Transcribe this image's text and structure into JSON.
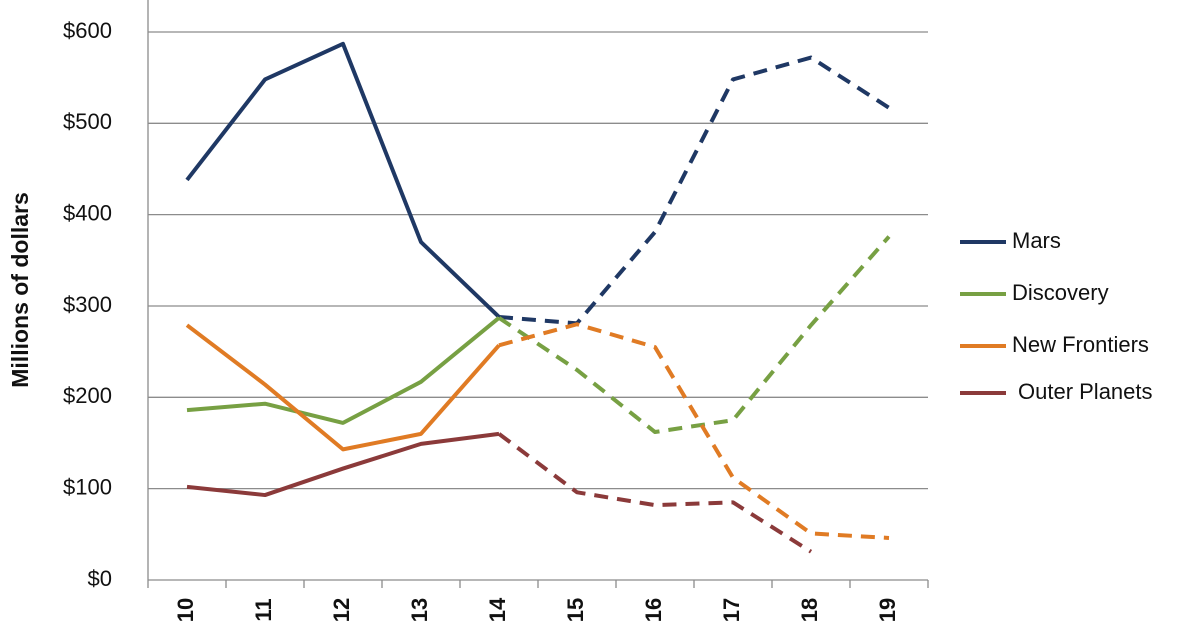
{
  "chart_data": {
    "type": "line",
    "y_label": "Millions of dollars",
    "categories": [
      "10",
      "11",
      "12",
      "13",
      "14",
      "15",
      "16",
      "17",
      "18",
      "19"
    ],
    "dashed_from": "14",
    "series": [
      {
        "name": "Mars",
        "color": "#1f3864",
        "values": [
          438,
          548,
          587,
          370,
          288,
          281,
          381,
          548,
          572,
          517
        ]
      },
      {
        "name": "Discovery",
        "color": "#77a043",
        "values": [
          186,
          193,
          172,
          217,
          287,
          230,
          162,
          175,
          279,
          376
        ]
      },
      {
        "name": "New Frontiers",
        "color": "#e07b24",
        "values": [
          279,
          214,
          143,
          160,
          257,
          280,
          255,
          112,
          51,
          46
        ]
      },
      {
        "name": "Outer Planets",
        "color": "#8b3a3a",
        "values": [
          102,
          93,
          122,
          149,
          160,
          96,
          82,
          85,
          31,
          null
        ]
      }
    ],
    "ylim": [
      0,
      635
    ],
    "yticks": [
      {
        "value": 0,
        "label": "$0"
      },
      {
        "value": 100,
        "label": "$100"
      },
      {
        "value": 200,
        "label": "$200"
      },
      {
        "value": 300,
        "label": "$300"
      },
      {
        "value": 400,
        "label": "$400"
      },
      {
        "value": 500,
        "label": "$500"
      },
      {
        "value": 600,
        "label": "$600"
      }
    ],
    "grid": true,
    "legend": "right"
  }
}
